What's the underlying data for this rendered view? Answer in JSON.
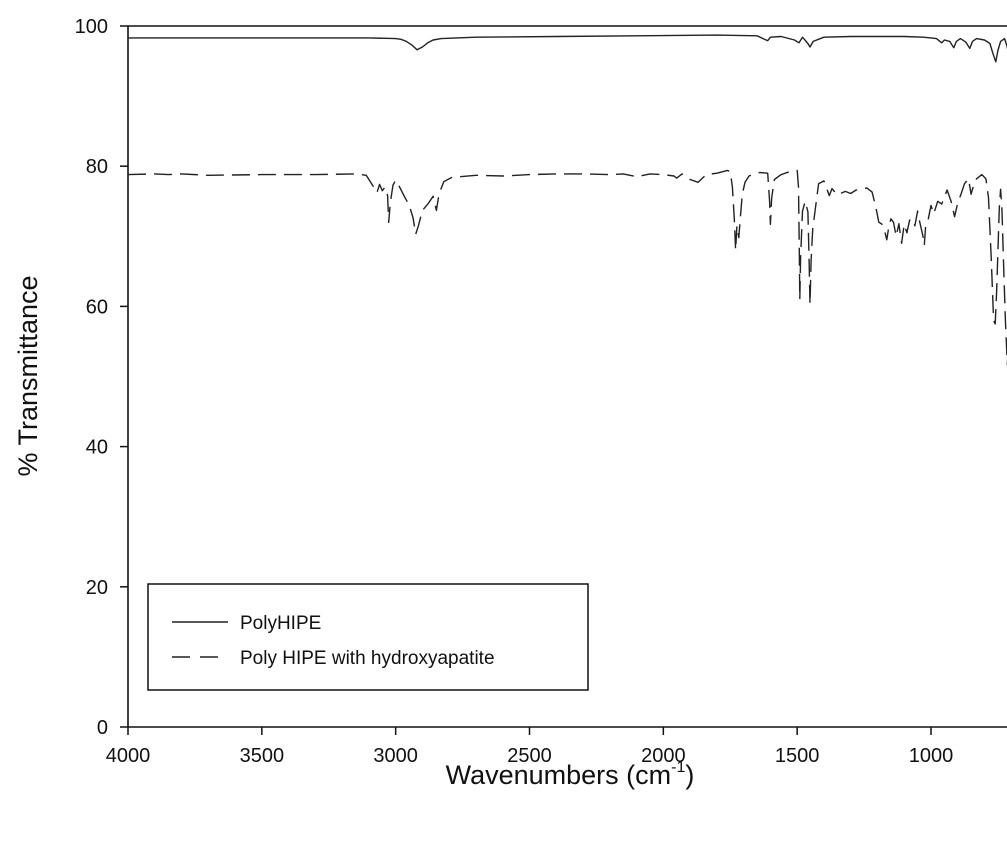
{
  "chart_data": {
    "type": "line",
    "title": "",
    "xlabel": "Wavenumbers (cm",
    "xlabel_superscript": "-1",
    "xlabel_suffix": ")",
    "ylabel": "% Transmittance",
    "xlim": [
      4000,
      700
    ],
    "x_reversed": true,
    "ylim": [
      0,
      100
    ],
    "x_ticks": [
      4000,
      3500,
      3000,
      2500,
      2000,
      1500,
      1000
    ],
    "y_ticks": [
      0,
      20,
      40,
      60,
      80,
      100
    ],
    "grid": false,
    "legend_position": "bottom-left",
    "series": [
      {
        "name": "PolyHIPE",
        "style": "solid",
        "color": "#222222",
        "points": [
          [
            4000,
            98.3
          ],
          [
            3700,
            98.3
          ],
          [
            3400,
            98.3
          ],
          [
            3100,
            98.3
          ],
          [
            3000,
            98.2
          ],
          [
            2980,
            98.1
          ],
          [
            2960,
            97.8
          ],
          [
            2940,
            97.3
          ],
          [
            2920,
            96.6
          ],
          [
            2900,
            97.0
          ],
          [
            2880,
            97.6
          ],
          [
            2860,
            98.0
          ],
          [
            2830,
            98.2
          ],
          [
            2700,
            98.4
          ],
          [
            2400,
            98.5
          ],
          [
            2100,
            98.6
          ],
          [
            1800,
            98.7
          ],
          [
            1650,
            98.6
          ],
          [
            1610,
            97.9
          ],
          [
            1600,
            98.4
          ],
          [
            1560,
            98.5
          ],
          [
            1510,
            98.0
          ],
          [
            1493,
            97.6
          ],
          [
            1480,
            98.4
          ],
          [
            1460,
            97.5
          ],
          [
            1452,
            97.0
          ],
          [
            1440,
            97.8
          ],
          [
            1400,
            98.4
          ],
          [
            1300,
            98.5
          ],
          [
            1200,
            98.5
          ],
          [
            1100,
            98.5
          ],
          [
            1030,
            98.4
          ],
          [
            1000,
            98.3
          ],
          [
            980,
            98.2
          ],
          [
            960,
            97.6
          ],
          [
            950,
            98.0
          ],
          [
            930,
            97.8
          ],
          [
            915,
            96.9
          ],
          [
            905,
            97.8
          ],
          [
            890,
            98.2
          ],
          [
            870,
            97.7
          ],
          [
            855,
            96.8
          ],
          [
            845,
            97.8
          ],
          [
            830,
            98.2
          ],
          [
            800,
            98.0
          ],
          [
            780,
            97.5
          ],
          [
            768,
            96.0
          ],
          [
            758,
            94.9
          ],
          [
            750,
            96.5
          ],
          [
            740,
            97.8
          ],
          [
            725,
            98.2
          ],
          [
            715,
            97.0
          ],
          [
            707,
            94.8
          ],
          [
            700,
            96.5
          ]
        ]
      },
      {
        "name": "Poly HIPE with hydroxyapatite",
        "style": "dashed",
        "color": "#222222",
        "points": [
          [
            4000,
            78.8
          ],
          [
            3900,
            78.9
          ],
          [
            3850,
            78.8
          ],
          [
            3800,
            78.9
          ],
          [
            3700,
            78.7
          ],
          [
            3500,
            78.8
          ],
          [
            3300,
            78.8
          ],
          [
            3150,
            78.9
          ],
          [
            3110,
            78.7
          ],
          [
            3085,
            77.2
          ],
          [
            3070,
            76.2
          ],
          [
            3060,
            77.4
          ],
          [
            3050,
            76.5
          ],
          [
            3040,
            77.0
          ],
          [
            3030,
            75.8
          ],
          [
            3026,
            72.0
          ],
          [
            3020,
            74.8
          ],
          [
            3010,
            77.3
          ],
          [
            3000,
            78.0
          ],
          [
            2985,
            77.0
          ],
          [
            2965,
            75.5
          ],
          [
            2950,
            74.5
          ],
          [
            2935,
            72.6
          ],
          [
            2925,
            70.3
          ],
          [
            2915,
            71.5
          ],
          [
            2900,
            73.7
          ],
          [
            2880,
            74.6
          ],
          [
            2860,
            75.7
          ],
          [
            2848,
            73.7
          ],
          [
            2838,
            76.0
          ],
          [
            2820,
            77.8
          ],
          [
            2790,
            78.4
          ],
          [
            2700,
            78.7
          ],
          [
            2600,
            78.6
          ],
          [
            2500,
            78.8
          ],
          [
            2400,
            78.9
          ],
          [
            2300,
            78.9
          ],
          [
            2200,
            78.8
          ],
          [
            2150,
            78.9
          ],
          [
            2100,
            78.5
          ],
          [
            2050,
            78.9
          ],
          [
            2000,
            78.8
          ],
          [
            1960,
            78.6
          ],
          [
            1950,
            78.3
          ],
          [
            1930,
            78.9
          ],
          [
            1900,
            78.1
          ],
          [
            1870,
            77.7
          ],
          [
            1840,
            78.8
          ],
          [
            1800,
            79.0
          ],
          [
            1760,
            79.4
          ],
          [
            1750,
            79.2
          ],
          [
            1742,
            77.0
          ],
          [
            1735,
            72.5
          ],
          [
            1730,
            68.0
          ],
          [
            1725,
            71.5
          ],
          [
            1718,
            69.8
          ],
          [
            1712,
            72.8
          ],
          [
            1705,
            76.0
          ],
          [
            1695,
            77.7
          ],
          [
            1680,
            78.6
          ],
          [
            1640,
            79.1
          ],
          [
            1610,
            79.0
          ],
          [
            1603,
            75.0
          ],
          [
            1600,
            71.7
          ],
          [
            1595,
            75.5
          ],
          [
            1585,
            78.1
          ],
          [
            1560,
            78.8
          ],
          [
            1530,
            79.2
          ],
          [
            1500,
            79.4
          ],
          [
            1495,
            77.0
          ],
          [
            1492,
            68.0
          ],
          [
            1490,
            61.0
          ],
          [
            1487,
            67.0
          ],
          [
            1480,
            73.6
          ],
          [
            1470,
            75.0
          ],
          [
            1460,
            73.5
          ],
          [
            1455,
            66.0
          ],
          [
            1452,
            60.3
          ],
          [
            1448,
            66.5
          ],
          [
            1442,
            71.0
          ],
          [
            1432,
            74.0
          ],
          [
            1420,
            77.5
          ],
          [
            1400,
            77.9
          ],
          [
            1380,
            75.8
          ],
          [
            1370,
            76.8
          ],
          [
            1350,
            75.9
          ],
          [
            1320,
            76.4
          ],
          [
            1300,
            76.1
          ],
          [
            1280,
            76.6
          ],
          [
            1240,
            76.9
          ],
          [
            1220,
            76.3
          ],
          [
            1205,
            74.0
          ],
          [
            1195,
            72.0
          ],
          [
            1185,
            71.8
          ],
          [
            1175,
            71.0
          ],
          [
            1165,
            69.5
          ],
          [
            1160,
            70.8
          ],
          [
            1150,
            72.5
          ],
          [
            1140,
            72.0
          ],
          [
            1130,
            70.0
          ],
          [
            1120,
            71.8
          ],
          [
            1110,
            69.0
          ],
          [
            1100,
            71.7
          ],
          [
            1090,
            70.5
          ],
          [
            1080,
            72.3
          ],
          [
            1070,
            72.5
          ],
          [
            1060,
            71.5
          ],
          [
            1050,
            73.6
          ],
          [
            1045,
            72.5
          ],
          [
            1030,
            70.0
          ],
          [
            1025,
            68.7
          ],
          [
            1020,
            71.4
          ],
          [
            1010,
            72.5
          ],
          [
            1000,
            74.4
          ],
          [
            990,
            73.2
          ],
          [
            975,
            75.0
          ],
          [
            960,
            74.6
          ],
          [
            950,
            75.6
          ],
          [
            940,
            76.6
          ],
          [
            925,
            75.0
          ],
          [
            912,
            72.8
          ],
          [
            900,
            74.8
          ],
          [
            888,
            76.0
          ],
          [
            875,
            77.5
          ],
          [
            860,
            78.2
          ],
          [
            850,
            76.0
          ],
          [
            840,
            77.4
          ],
          [
            830,
            78.2
          ],
          [
            810,
            78.8
          ],
          [
            795,
            78.2
          ],
          [
            785,
            75.5
          ],
          [
            775,
            67.0
          ],
          [
            766,
            58.0
          ],
          [
            760,
            57.5
          ],
          [
            755,
            62.0
          ],
          [
            745,
            74.0
          ],
          [
            740,
            76.7
          ],
          [
            735,
            74.0
          ],
          [
            728,
            65.0
          ],
          [
            722,
            58.0
          ],
          [
            715,
            51.7
          ],
          [
            710,
            55.0
          ],
          [
            705,
            68.0
          ],
          [
            700,
            78.0
          ]
        ]
      }
    ]
  }
}
